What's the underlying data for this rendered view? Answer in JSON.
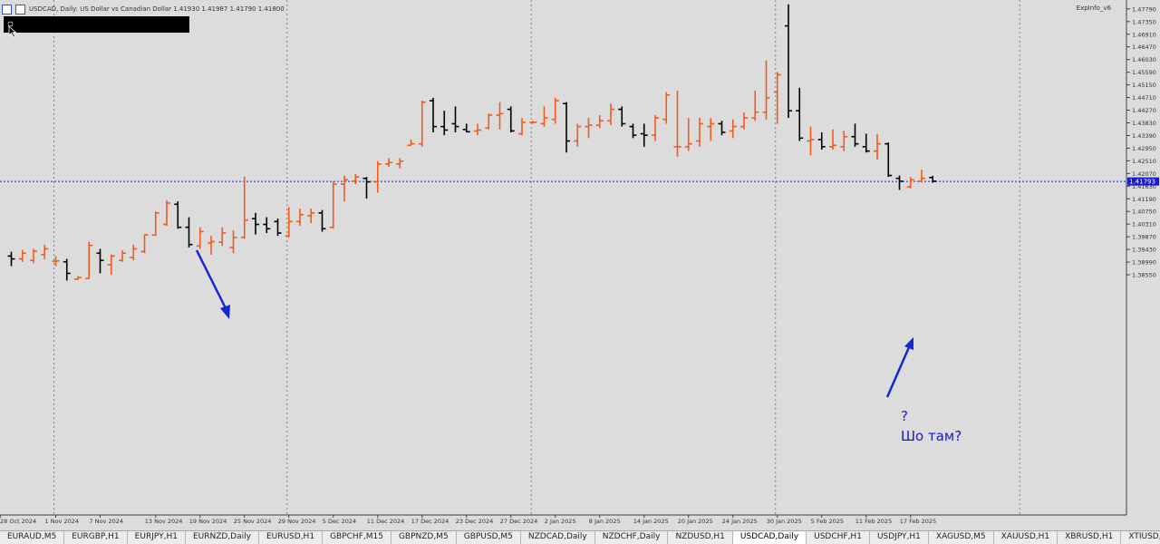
{
  "header": {
    "symbol_title": "USDCAD, Daily:  US Dollar vs Canadian Dollar  1.41930 1.41987 1.41790 1.41800",
    "indicator": "ExpInfo_v6"
  },
  "note": {
    "q": "?",
    "text": "Шо там?"
  },
  "colors": {
    "bull": "#f25a1e",
    "bear": "#000000",
    "bid_line": "#1a1acc",
    "arrow": "#1428d2",
    "background": "#dcdcdc"
  },
  "icons": [
    "chart-type-icon",
    "color-icon",
    "menu-icon",
    "cursor-icon"
  ],
  "chart_data": {
    "type": "bar",
    "symbol": "USDCAD",
    "timeframe": "Daily",
    "ylim": [
      1.302,
      1.481
    ],
    "y_ticks": [
      "1.47790",
      "1.47350",
      "1.46910",
      "1.46470",
      "1.46030",
      "1.45590",
      "1.45150",
      "1.44710",
      "1.44270",
      "1.43830",
      "1.43390",
      "1.42950",
      "1.42510",
      "1.42070",
      "1.41630",
      "1.41190",
      "1.40750",
      "1.40310",
      "1.39870",
      "1.39430",
      "1.38990",
      "1.38550"
    ],
    "y_tick_values": [
      1.4779,
      1.4735,
      1.4691,
      1.4647,
      1.4603,
      1.4559,
      1.4515,
      1.4471,
      1.4427,
      1.4383,
      1.4339,
      1.4295,
      1.4251,
      1.4207,
      1.4163,
      1.4119,
      1.4075,
      1.4031,
      1.3987,
      1.3943,
      1.3899,
      1.3855
    ],
    "current_price": "1.41793",
    "current_price_value": 1.41793,
    "x_labels": [
      {
        "i": -1,
        "t": "28 Oct 2024"
      },
      {
        "i": 4,
        "t": "1 Nov 2024"
      },
      {
        "i": 8,
        "t": "7 Nov 2024"
      },
      {
        "i": 13,
        "t": "13 Nov 2024"
      },
      {
        "i": 17,
        "t": "19 Nov 2024"
      },
      {
        "i": 21,
        "t": "25 Nov 2024"
      },
      {
        "i": 25,
        "t": "29 Nov 2024"
      },
      {
        "i": 29,
        "t": "5 Dec 2024"
      },
      {
        "i": 33,
        "t": "11 Dec 2024"
      },
      {
        "i": 37,
        "t": "17 Dec 2024"
      },
      {
        "i": 41,
        "t": "23 Dec 2024"
      },
      {
        "i": 45,
        "t": "27 Dec 2024"
      },
      {
        "i": 49,
        "t": "2 Jan 2025"
      },
      {
        "i": 53,
        "t": "8 Jan 2025"
      },
      {
        "i": 57,
        "t": "14 Jan 2025"
      },
      {
        "i": 61,
        "t": "20 Jan 2025"
      },
      {
        "i": 65,
        "t": "24 Jan 2025"
      },
      {
        "i": 69,
        "t": "30 Jan 2025"
      },
      {
        "i": 73,
        "t": "5 Feb 2025"
      },
      {
        "i": 77,
        "t": "11 Feb 2025"
      },
      {
        "i": 81,
        "t": "17 Feb 2025"
      }
    ],
    "vgrid_at": [
      4,
      25,
      47,
      69,
      91
    ],
    "ohlc": [
      [
        1.392,
        1.3935,
        1.3885,
        1.391
      ],
      [
        1.391,
        1.3942,
        1.39,
        1.393
      ],
      [
        1.3905,
        1.3945,
        1.3895,
        1.3937
      ],
      [
        1.3925,
        1.396,
        1.391,
        1.3945
      ],
      [
        1.3902,
        1.392,
        1.3885,
        1.3903
      ],
      [
        1.39,
        1.391,
        1.3835,
        1.386
      ],
      [
        1.384,
        1.385,
        1.3837,
        1.3845
      ],
      [
        1.3842,
        1.397,
        1.384,
        1.3957
      ],
      [
        1.393,
        1.3945,
        1.386,
        1.3905
      ],
      [
        1.389,
        1.3925,
        1.3855,
        1.392
      ],
      [
        1.3905,
        1.394,
        1.39,
        1.393
      ],
      [
        1.3915,
        1.396,
        1.3905,
        1.3945
      ],
      [
        1.3936,
        1.3995,
        1.393,
        1.3994
      ],
      [
        1.3993,
        1.4075,
        1.399,
        1.407
      ],
      [
        1.403,
        1.4114,
        1.4025,
        1.4104
      ],
      [
        1.41,
        1.411,
        1.4015,
        1.402
      ],
      [
        1.402,
        1.4055,
        1.395,
        1.396
      ],
      [
        1.3955,
        1.402,
        1.3945,
        1.4005
      ],
      [
        1.3965,
        1.399,
        1.3925,
        1.397
      ],
      [
        1.3968,
        1.402,
        1.3955,
        1.4
      ],
      [
        1.395,
        1.401,
        1.393,
        1.3985
      ],
      [
        1.3985,
        1.4196,
        1.398,
        1.4045
      ],
      [
        1.405,
        1.407,
        1.3995,
        1.403
      ],
      [
        1.403,
        1.4055,
        1.4,
        1.4015
      ],
      [
        1.404,
        1.405,
        1.399,
        1.4
      ],
      [
        1.399,
        1.409,
        1.3985,
        1.404
      ],
      [
        1.404,
        1.4085,
        1.4025,
        1.4064
      ],
      [
        1.406,
        1.4085,
        1.4035,
        1.407
      ],
      [
        1.407,
        1.408,
        1.4005,
        1.4015
      ],
      [
        1.402,
        1.418,
        1.4015,
        1.417
      ],
      [
        1.417,
        1.42,
        1.411,
        1.4185
      ],
      [
        1.418,
        1.4205,
        1.417,
        1.4195
      ],
      [
        1.419,
        1.4195,
        1.412,
        1.4178
      ],
      [
        1.4178,
        1.425,
        1.414,
        1.424
      ],
      [
        1.424,
        1.426,
        1.423,
        1.4245
      ],
      [
        1.424,
        1.426,
        1.4225,
        1.425
      ],
      [
        1.4305,
        1.4325,
        1.4305,
        1.431
      ],
      [
        1.431,
        1.446,
        1.43,
        1.4455
      ],
      [
        1.446,
        1.447,
        1.435,
        1.437
      ],
      [
        1.437,
        1.4425,
        1.434,
        1.4358
      ],
      [
        1.438,
        1.444,
        1.435,
        1.437
      ],
      [
        1.436,
        1.438,
        1.435,
        1.4352
      ],
      [
        1.4355,
        1.438,
        1.434,
        1.4358
      ],
      [
        1.4365,
        1.4415,
        1.436,
        1.441
      ],
      [
        1.441,
        1.4455,
        1.436,
        1.4415
      ],
      [
        1.443,
        1.444,
        1.435,
        1.4355
      ],
      [
        1.4345,
        1.44,
        1.434,
        1.4385
      ],
      [
        1.4385,
        1.439,
        1.438,
        1.4385
      ],
      [
        1.438,
        1.444,
        1.437,
        1.44
      ],
      [
        1.4395,
        1.447,
        1.438,
        1.446
      ],
      [
        1.445,
        1.4455,
        1.428,
        1.432
      ],
      [
        1.432,
        1.438,
        1.43,
        1.437
      ],
      [
        1.437,
        1.44,
        1.433,
        1.4375
      ],
      [
        1.4375,
        1.441,
        1.4365,
        1.439
      ],
      [
        1.439,
        1.445,
        1.4375,
        1.443
      ],
      [
        1.443,
        1.444,
        1.437,
        1.438
      ],
      [
        1.437,
        1.438,
        1.433,
        1.434
      ],
      [
        1.4345,
        1.438,
        1.43,
        1.434
      ],
      [
        1.434,
        1.441,
        1.432,
        1.44
      ],
      [
        1.4395,
        1.449,
        1.438,
        1.448
      ],
      [
        1.43,
        1.4495,
        1.4265,
        1.43
      ],
      [
        1.43,
        1.44,
        1.4285,
        1.431
      ],
      [
        1.432,
        1.44,
        1.43,
        1.438
      ],
      [
        1.437,
        1.44,
        1.432,
        1.438
      ],
      [
        1.438,
        1.439,
        1.434,
        1.435
      ],
      [
        1.4355,
        1.4395,
        1.433,
        1.437
      ],
      [
        1.437,
        1.442,
        1.436,
        1.44
      ],
      [
        1.44,
        1.4495,
        1.439,
        1.442
      ],
      [
        1.442,
        1.46,
        1.4395,
        1.447
      ],
      [
        1.449,
        1.456,
        1.438,
        1.455
      ],
      [
        1.472,
        1.4795,
        1.44,
        1.4425
      ],
      [
        1.4425,
        1.4505,
        1.432,
        1.433
      ],
      [
        1.432,
        1.437,
        1.427,
        1.4325
      ],
      [
        1.4325,
        1.435,
        1.429,
        1.43
      ],
      [
        1.43,
        1.436,
        1.429,
        1.4305
      ],
      [
        1.43,
        1.4355,
        1.4285,
        1.4335
      ],
      [
        1.4335,
        1.438,
        1.43,
        1.431
      ],
      [
        1.43,
        1.4345,
        1.428,
        1.4285
      ],
      [
        1.4285,
        1.4345,
        1.4255,
        1.431
      ],
      [
        1.431,
        1.4315,
        1.4195,
        1.42
      ],
      [
        1.419,
        1.42,
        1.415,
        1.418
      ],
      [
        1.416,
        1.4195,
        1.4155,
        1.4185
      ],
      [
        1.418,
        1.422,
        1.4175,
        1.419
      ],
      [
        1.4193,
        1.4199,
        1.4175,
        1.418
      ]
    ]
  }
}
